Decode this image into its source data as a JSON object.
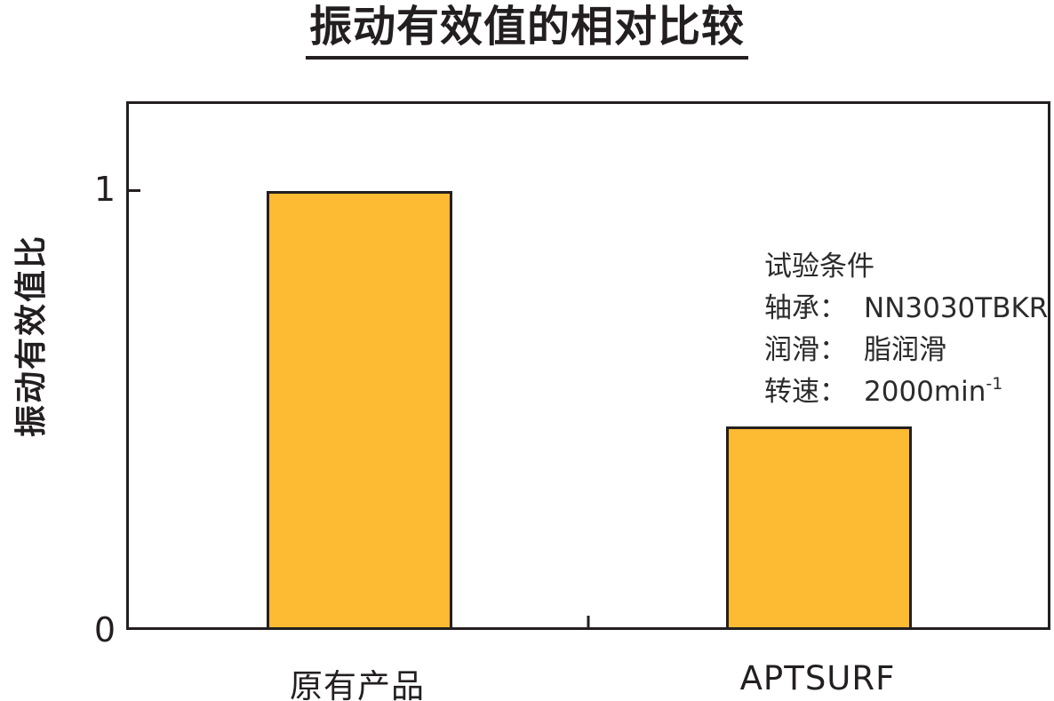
{
  "figure": {
    "background": "#FFFFFF",
    "line_color": "#231F20",
    "text_color": "#231F20"
  },
  "chart_data": {
    "type": "bar",
    "title": "振动有效值的相对比较",
    "categories": [
      "原有产品",
      "APTSURF"
    ],
    "values": [
      1.0,
      0.46
    ],
    "xlabel": "",
    "ylabel": "振动有效值比",
    "ylim": [
      0,
      1.2
    ],
    "ytick_labels": {
      "zero": "0",
      "one": "1"
    },
    "grid": false,
    "legend": "none",
    "bar_color": "#FDBA33",
    "bar_border_color": "#231F20",
    "annotation": {
      "header": "试验条件",
      "lines": [
        {
          "label": "轴承：",
          "value": "NN3030TBKR"
        },
        {
          "label": "润滑：",
          "value": "脂润滑"
        },
        {
          "label": "转速：",
          "value": "2000min",
          "value_sup": "-1"
        }
      ]
    }
  }
}
